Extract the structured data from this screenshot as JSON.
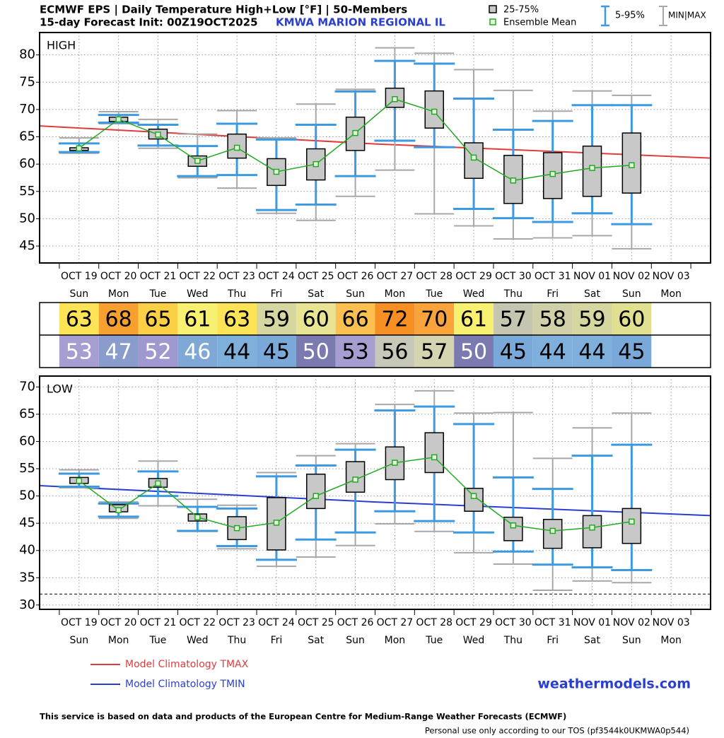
{
  "header": {
    "title": "ECMWF EPS | Daily Temperature High+Low [°F] | 50-Members",
    "subtitle": "15-day Forecast Init: 00Z19OCT2025",
    "station": "KMWA  MARION REGIONAL IL"
  },
  "legend": {
    "box": "25-75%",
    "mean": "Ensemble Mean",
    "whisker": "5-95%",
    "range": "MIN|MAX"
  },
  "chart_data": [
    {
      "type": "box",
      "panel_label": "HIGH",
      "categories": [
        "OCT 19",
        "OCT 20",
        "OCT 21",
        "OCT 22",
        "OCT 23",
        "OCT 24",
        "OCT 25",
        "OCT 26",
        "OCT 27",
        "OCT 28",
        "OCT 29",
        "OCT 30",
        "OCT 31",
        "NOV 01",
        "NOV 02",
        "NOV 03"
      ],
      "weekdays": [
        "Sun",
        "Mon",
        "Tue",
        "Wed",
        "Thu",
        "Fri",
        "Sat",
        "Sun",
        "Mon",
        "Tue",
        "Wed",
        "Thu",
        "Fri",
        "Sat",
        "Sun",
        "Mon"
      ],
      "xlim": [
        -1,
        16
      ],
      "ylim": [
        41.9,
        84.1
      ],
      "yticks": [
        45,
        50,
        55,
        60,
        65,
        70,
        75,
        80
      ],
      "grid": true,
      "stats": {
        "min": [
          62.0,
          67.4,
          62.9,
          57.5,
          55.6,
          51.0,
          49.7,
          54.1,
          58.9,
          50.9,
          48.7,
          46.3,
          46.5,
          46.9,
          44.5,
          null
        ],
        "p5": [
          62.2,
          67.6,
          63.4,
          57.8,
          58.0,
          51.6,
          52.6,
          57.8,
          64.3,
          63.1,
          51.8,
          50.1,
          49.4,
          51.0,
          49.0,
          null
        ],
        "p25": [
          62.5,
          67.8,
          64.6,
          59.6,
          61.1,
          56.1,
          57.1,
          62.5,
          70.4,
          66.6,
          57.4,
          52.8,
          53.7,
          54.1,
          54.7,
          null
        ],
        "mean": [
          62.9,
          68.2,
          65.4,
          60.6,
          63.0,
          58.6,
          60.0,
          65.7,
          71.9,
          69.6,
          61.2,
          57.0,
          58.2,
          59.3,
          59.8,
          null
        ],
        "p75": [
          63.0,
          68.6,
          66.4,
          61.5,
          65.5,
          61.0,
          62.8,
          68.6,
          73.9,
          73.4,
          63.9,
          61.6,
          62.1,
          63.3,
          65.7,
          null
        ],
        "p95": [
          63.8,
          69.0,
          67.2,
          63.3,
          67.4,
          64.5,
          67.2,
          73.3,
          78.9,
          78.4,
          72.0,
          66.3,
          67.9,
          70.8,
          70.8,
          null
        ],
        "max": [
          64.8,
          69.6,
          68.2,
          65.5,
          69.8,
          64.8,
          71.0,
          73.7,
          81.3,
          80.3,
          77.3,
          73.5,
          69.7,
          73.4,
          72.6,
          null
        ]
      },
      "colors": {
        "box": "#c8c8c8",
        "whisker": "#3d9ae0",
        "range": "#a8a8a8",
        "mean": "#22aa22"
      },
      "climatology": {
        "name": "Model Climatology TMAX",
        "color": "#e03c3c",
        "x": [
          -1,
          7.5,
          16
        ],
        "values": [
          67.0,
          63.7,
          61.1
        ]
      }
    },
    {
      "type": "box",
      "panel_label": "LOW",
      "categories": [
        "OCT 19",
        "OCT 20",
        "OCT 21",
        "OCT 22",
        "OCT 23",
        "OCT 24",
        "OCT 25",
        "OCT 26",
        "OCT 27",
        "OCT 28",
        "OCT 29",
        "OCT 30",
        "OCT 31",
        "NOV 01",
        "NOV 02",
        "NOV 03"
      ],
      "weekdays": [
        "Sun",
        "Mon",
        "Tue",
        "Wed",
        "Thu",
        "Fri",
        "Sat",
        "Sun",
        "Mon",
        "Tue",
        "Wed",
        "Thu",
        "Fri",
        "Sat",
        "Sun",
        "Mon"
      ],
      "xlim": [
        -1,
        16
      ],
      "ylim": [
        29.2,
        72
      ],
      "yticks": [
        30,
        35,
        40,
        45,
        50,
        55,
        60,
        65,
        70
      ],
      "grid": true,
      "stats": {
        "min": [
          51.5,
          45.9,
          48.2,
          43.5,
          40.3,
          37.1,
          38.8,
          40.9,
          44.9,
          43.5,
          39.6,
          37.5,
          32.7,
          34.4,
          34.1,
          null
        ],
        "p5": [
          51.7,
          46.2,
          50.0,
          43.6,
          40.8,
          38.3,
          42.0,
          43.3,
          47.2,
          45.4,
          43.3,
          39.8,
          37.4,
          36.9,
          36.4,
          null
        ],
        "p25": [
          52.3,
          47.1,
          51.6,
          45.4,
          42.0,
          40.1,
          47.7,
          50.7,
          53.0,
          54.3,
          47.2,
          41.8,
          40.4,
          40.5,
          41.3,
          null
        ],
        "mean": [
          52.8,
          47.4,
          52.3,
          46.1,
          44.1,
          45.1,
          50.0,
          53.0,
          56.1,
          57.1,
          50.0,
          44.6,
          43.6,
          44.2,
          45.3,
          null
        ],
        "p75": [
          53.4,
          48.4,
          53.2,
          46.7,
          46.2,
          49.7,
          54.0,
          56.3,
          59.0,
          61.6,
          51.4,
          46.1,
          45.7,
          46.4,
          47.7,
          null
        ],
        "p95": [
          54.1,
          48.6,
          54.5,
          48.0,
          47.7,
          53.6,
          55.6,
          58.5,
          65.7,
          66.4,
          63.2,
          53.4,
          51.3,
          57.4,
          59.4,
          null
        ],
        "max": [
          54.8,
          48.9,
          56.4,
          49.4,
          48.3,
          54.3,
          57.4,
          59.6,
          66.8,
          69.3,
          65.2,
          65.3,
          56.9,
          62.5,
          65.2,
          null
        ]
      },
      "colors": {
        "box": "#c8c8c8",
        "whisker": "#3d9ae0",
        "range": "#a8a8a8",
        "mean": "#22aa22"
      },
      "climatology": {
        "name": "Model Climatology TMIN",
        "color": "#2a3fd0",
        "x": [
          -1,
          7.5,
          16
        ],
        "values": [
          51.9,
          48.9,
          46.4
        ]
      },
      "reference_line": 32
    }
  ],
  "summary_table": {
    "rows": [
      {
        "values": [
          63,
          68,
          65,
          61,
          63,
          59,
          60,
          66,
          72,
          70,
          61,
          57,
          58,
          59,
          60
        ],
        "colors": [
          "#fde456",
          "#f7a030",
          "#fbd047",
          "#f8f070",
          "#fde456",
          "#d6d6a0",
          "#e8e494",
          "#fbc050",
          "#f78f22",
          "#f9a33a",
          "#f8f070",
          "#c5c5b0",
          "#d0d0a8",
          "#d6d6a0",
          "#e0e090"
        ],
        "text_colors": [
          "#000",
          "#000",
          "#000",
          "#000",
          "#000",
          "#000",
          "#000",
          "#000",
          "#000",
          "#000",
          "#000",
          "#000",
          "#000",
          "#000",
          "#000"
        ]
      },
      {
        "values": [
          53,
          47,
          52,
          46,
          44,
          45,
          50,
          53,
          56,
          57,
          50,
          45,
          44,
          44,
          45
        ],
        "colors": [
          "#a69ed0",
          "#8a9ccc",
          "#a099d0",
          "#80a8d6",
          "#7fb0dc",
          "#7aa8d8",
          "#7a7ab0",
          "#a69ed0",
          "#c8c8b8",
          "#d4d4b0",
          "#7a7ab0",
          "#7aa8d8",
          "#7fb0dc",
          "#7fb0dc",
          "#7aa8d8"
        ],
        "text_colors": [
          "#fff",
          "#fff",
          "#fff",
          "#fff",
          "#000",
          "#000",
          "#fff",
          "#000",
          "#000",
          "#000",
          "#fff",
          "#000",
          "#000",
          "#000",
          "#000"
        ]
      }
    ]
  },
  "footer": {
    "brand": "weathermodels.com",
    "notice": "This service is based on data and products of the European Centre for Medium-Range Weather Forecasts (ECMWF)",
    "terms": "Personal use only according to our TOS (pf3544k0UKMWA0p544)"
  }
}
